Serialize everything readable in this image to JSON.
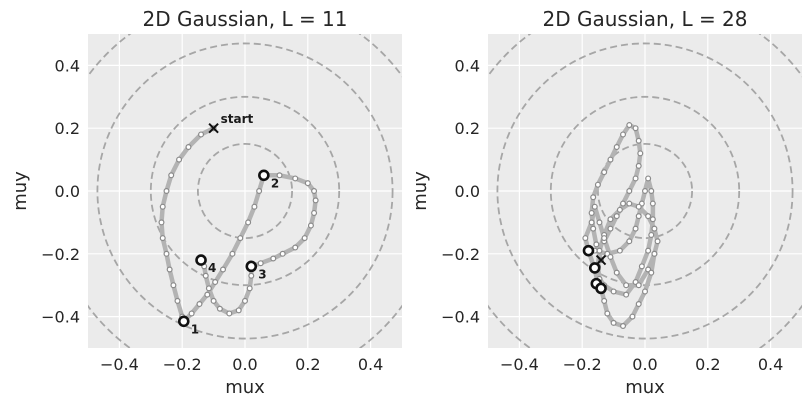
{
  "chart_data": [
    {
      "type": "line",
      "title": "2D Gaussian, L = 11",
      "xlabel": "mux",
      "ylabel": "muy",
      "xlim": [
        -0.5,
        0.5
      ],
      "ylim": [
        -0.5,
        0.5
      ],
      "xticks": [
        -0.4,
        -0.2,
        0.0,
        0.2,
        0.4
      ],
      "yticks": [
        -0.4,
        -0.2,
        0.0,
        0.2,
        0.4
      ],
      "xtick_labels": [
        "−0.4",
        "−0.2",
        "0.0",
        "0.2",
        "0.4"
      ],
      "ytick_labels": [
        "−0.4",
        "−0.2",
        "0.0",
        "0.2",
        "0.4"
      ],
      "grid": true,
      "contour_radii": [
        0.15,
        0.3,
        0.47,
        0.62
      ],
      "start": {
        "x": -0.1,
        "y": 0.2,
        "label": "start"
      },
      "trajectory": [
        {
          "x": -0.1,
          "y": 0.2
        },
        {
          "x": -0.14,
          "y": 0.18
        },
        {
          "x": -0.18,
          "y": 0.14
        },
        {
          "x": -0.21,
          "y": 0.1
        },
        {
          "x": -0.235,
          "y": 0.05
        },
        {
          "x": -0.25,
          "y": 0.0
        },
        {
          "x": -0.262,
          "y": -0.05
        },
        {
          "x": -0.266,
          "y": -0.1
        },
        {
          "x": -0.262,
          "y": -0.15
        },
        {
          "x": -0.25,
          "y": -0.2
        },
        {
          "x": -0.24,
          "y": -0.25
        },
        {
          "x": -0.228,
          "y": -0.3
        },
        {
          "x": -0.215,
          "y": -0.35
        },
        {
          "x": -0.2,
          "y": -0.4
        },
        {
          "x": -0.195,
          "y": -0.415
        },
        {
          "x": -0.17,
          "y": -0.39
        },
        {
          "x": -0.145,
          "y": -0.36
        },
        {
          "x": -0.12,
          "y": -0.33
        },
        {
          "x": -0.095,
          "y": -0.29
        },
        {
          "x": -0.07,
          "y": -0.25
        },
        {
          "x": -0.04,
          "y": -0.2
        },
        {
          "x": -0.015,
          "y": -0.15
        },
        {
          "x": 0.01,
          "y": -0.1
        },
        {
          "x": 0.03,
          "y": -0.05
        },
        {
          "x": 0.045,
          "y": 0.0
        },
        {
          "x": 0.06,
          "y": 0.05
        },
        {
          "x": 0.11,
          "y": 0.05
        },
        {
          "x": 0.16,
          "y": 0.04
        },
        {
          "x": 0.2,
          "y": 0.025
        },
        {
          "x": 0.22,
          "y": 0.0
        },
        {
          "x": 0.225,
          "y": -0.03
        },
        {
          "x": 0.22,
          "y": -0.07
        },
        {
          "x": 0.21,
          "y": -0.11
        },
        {
          "x": 0.19,
          "y": -0.15
        },
        {
          "x": 0.16,
          "y": -0.18
        },
        {
          "x": 0.12,
          "y": -0.2
        },
        {
          "x": 0.09,
          "y": -0.215
        },
        {
          "x": 0.05,
          "y": -0.23
        },
        {
          "x": 0.02,
          "y": -0.24
        },
        {
          "x": 0.02,
          "y": -0.27
        },
        {
          "x": 0.015,
          "y": -0.31
        },
        {
          "x": 0.0,
          "y": -0.35
        },
        {
          "x": -0.02,
          "y": -0.38
        },
        {
          "x": -0.05,
          "y": -0.39
        },
        {
          "x": -0.08,
          "y": -0.375
        },
        {
          "x": -0.1,
          "y": -0.35
        },
        {
          "x": -0.115,
          "y": -0.31
        },
        {
          "x": -0.125,
          "y": -0.27
        },
        {
          "x": -0.13,
          "y": -0.24
        },
        {
          "x": -0.14,
          "y": -0.22
        }
      ],
      "highlighted_points": [
        {
          "x": -0.195,
          "y": -0.415,
          "label": "1"
        },
        {
          "x": 0.06,
          "y": 0.05,
          "label": "2"
        },
        {
          "x": 0.02,
          "y": -0.24,
          "label": "3"
        },
        {
          "x": -0.14,
          "y": -0.22,
          "label": "4"
        }
      ]
    },
    {
      "type": "line",
      "title": "2D Gaussian, L = 28",
      "xlabel": "mux",
      "ylabel": "muy",
      "xlim": [
        -0.5,
        0.5
      ],
      "ylim": [
        -0.5,
        0.5
      ],
      "xticks": [
        -0.4,
        -0.2,
        0.0,
        0.2,
        0.4
      ],
      "yticks": [
        -0.4,
        -0.2,
        0.0,
        0.2,
        0.4
      ],
      "xtick_labels": [
        "−0.4",
        "−0.2",
        "0.0",
        "0.2",
        "0.4"
      ],
      "ytick_labels": [
        "−0.4",
        "−0.2",
        "0.0",
        "0.2",
        "0.4"
      ],
      "grid": true,
      "contour_radii": [
        0.15,
        0.3,
        0.47,
        0.62
      ],
      "start": {
        "x": -0.14,
        "y": -0.22
      },
      "trajectory": [
        {
          "x": -0.14,
          "y": -0.22
        },
        {
          "x": -0.155,
          "y": -0.17
        },
        {
          "x": -0.165,
          "y": -0.12
        },
        {
          "x": -0.17,
          "y": -0.07
        },
        {
          "x": -0.165,
          "y": -0.02
        },
        {
          "x": -0.15,
          "y": 0.02
        },
        {
          "x": -0.13,
          "y": 0.06
        },
        {
          "x": -0.11,
          "y": 0.1
        },
        {
          "x": -0.09,
          "y": 0.14
        },
        {
          "x": -0.07,
          "y": 0.18
        },
        {
          "x": -0.05,
          "y": 0.21
        },
        {
          "x": -0.03,
          "y": 0.2
        },
        {
          "x": -0.02,
          "y": 0.16
        },
        {
          "x": -0.015,
          "y": 0.12
        },
        {
          "x": -0.02,
          "y": 0.08
        },
        {
          "x": -0.03,
          "y": 0.04
        },
        {
          "x": -0.05,
          "y": 0.0
        },
        {
          "x": -0.07,
          "y": -0.04
        },
        {
          "x": -0.09,
          "y": -0.08
        },
        {
          "x": -0.11,
          "y": -0.12
        },
        {
          "x": -0.13,
          "y": -0.16
        },
        {
          "x": -0.16,
          "y": -0.19
        },
        {
          "x": -0.12,
          "y": -0.2
        },
        {
          "x": -0.08,
          "y": -0.19
        },
        {
          "x": -0.05,
          "y": -0.16
        },
        {
          "x": -0.03,
          "y": -0.12
        },
        {
          "x": -0.02,
          "y": -0.08
        },
        {
          "x": -0.01,
          "y": -0.04
        },
        {
          "x": 0.0,
          "y": 0.0
        },
        {
          "x": 0.01,
          "y": 0.04
        },
        {
          "x": 0.02,
          "y": 0.0
        },
        {
          "x": 0.025,
          "y": -0.04
        },
        {
          "x": 0.025,
          "y": -0.09
        },
        {
          "x": 0.02,
          "y": -0.14
        },
        {
          "x": 0.01,
          "y": -0.19
        },
        {
          "x": -0.01,
          "y": -0.24
        },
        {
          "x": -0.03,
          "y": -0.29
        },
        {
          "x": -0.06,
          "y": -0.33
        },
        {
          "x": -0.1,
          "y": -0.32
        },
        {
          "x": -0.13,
          "y": -0.3
        },
        {
          "x": -0.145,
          "y": -0.28
        },
        {
          "x": -0.15,
          "y": -0.24
        },
        {
          "x": -0.145,
          "y": -0.19
        },
        {
          "x": -0.13,
          "y": -0.14
        },
        {
          "x": -0.11,
          "y": -0.09
        },
        {
          "x": -0.08,
          "y": -0.06
        },
        {
          "x": -0.05,
          "y": -0.04
        },
        {
          "x": -0.02,
          "y": -0.05
        },
        {
          "x": 0.01,
          "y": -0.08
        },
        {
          "x": 0.03,
          "y": -0.12
        },
        {
          "x": 0.04,
          "y": -0.16
        },
        {
          "x": 0.03,
          "y": -0.2
        },
        {
          "x": 0.01,
          "y": -0.25
        },
        {
          "x": -0.02,
          "y": -0.3
        },
        {
          "x": -0.06,
          "y": -0.3
        },
        {
          "x": -0.09,
          "y": -0.26
        },
        {
          "x": -0.11,
          "y": -0.21
        },
        {
          "x": -0.13,
          "y": -0.15
        },
        {
          "x": -0.145,
          "y": -0.1
        },
        {
          "x": -0.16,
          "y": -0.05
        },
        {
          "x": -0.17,
          "y": -0.1
        },
        {
          "x": -0.19,
          "y": -0.15
        },
        {
          "x": -0.18,
          "y": -0.19
        },
        {
          "x": -0.16,
          "y": -0.25
        },
        {
          "x": -0.15,
          "y": -0.295
        },
        {
          "x": -0.14,
          "y": -0.31
        },
        {
          "x": -0.13,
          "y": -0.35
        },
        {
          "x": -0.12,
          "y": -0.39
        },
        {
          "x": -0.1,
          "y": -0.42
        },
        {
          "x": -0.07,
          "y": -0.43
        },
        {
          "x": -0.04,
          "y": -0.4
        },
        {
          "x": -0.02,
          "y": -0.36
        },
        {
          "x": 0.0,
          "y": -0.32
        },
        {
          "x": 0.02,
          "y": -0.26
        },
        {
          "x": 0.03,
          "y": -0.2
        }
      ],
      "highlighted_points": [
        {
          "x": -0.18,
          "y": -0.19
        },
        {
          "x": -0.16,
          "y": -0.245
        },
        {
          "x": -0.155,
          "y": -0.295
        },
        {
          "x": -0.14,
          "y": -0.31
        }
      ]
    }
  ]
}
